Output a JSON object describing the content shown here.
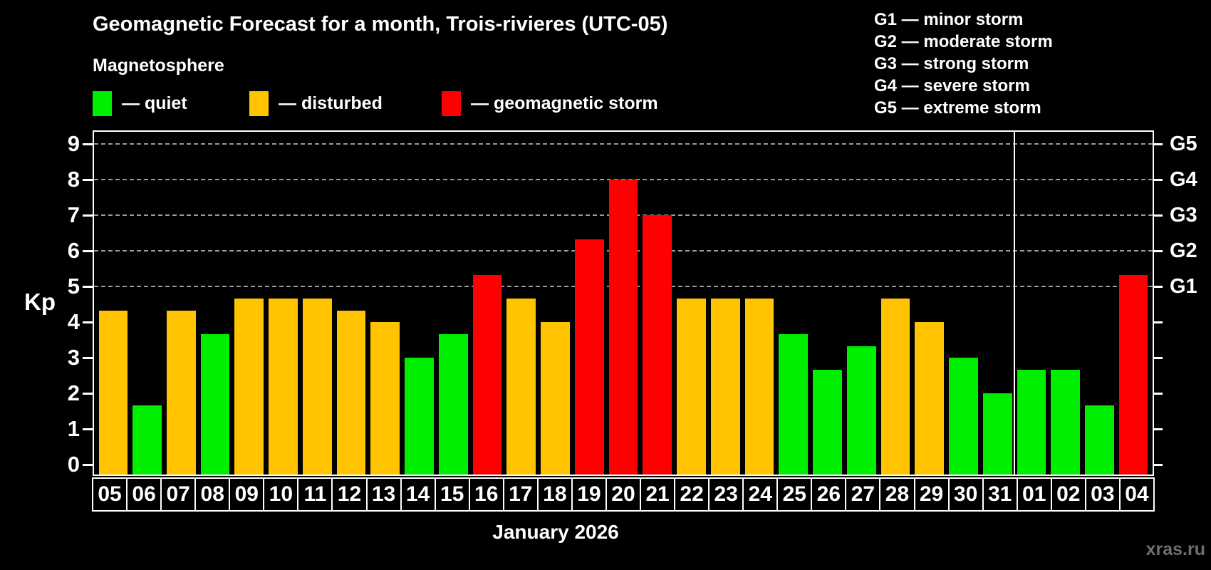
{
  "header": {
    "title": "Geomagnetic Forecast for a month, Trois-rivieres (UTC-05)",
    "subtitle": "Magnetosphere"
  },
  "legend": {
    "items": [
      {
        "key": "quiet",
        "label": "— quiet",
        "color": "#00ee00"
      },
      {
        "key": "disturbed",
        "label": "— disturbed",
        "color": "#ffc300"
      },
      {
        "key": "storm",
        "label": "— geomagnetic storm",
        "color": "#ff0000"
      }
    ]
  },
  "g_legend": {
    "items": [
      {
        "code": "G1",
        "label": "G1 — minor storm"
      },
      {
        "code": "G2",
        "label": "G2 — moderate storm"
      },
      {
        "code": "G3",
        "label": "G3 — strong storm"
      },
      {
        "code": "G4",
        "label": "G4 — severe storm"
      },
      {
        "code": "G5",
        "label": "G5 — extreme storm"
      }
    ]
  },
  "axes": {
    "left_label": "Kp",
    "left_ticks": [
      0,
      1,
      2,
      3,
      4,
      5,
      6,
      7,
      8,
      9
    ],
    "right_ticks": [
      {
        "kp": 5,
        "label": "G1"
      },
      {
        "kp": 6,
        "label": "G2"
      },
      {
        "kp": 7,
        "label": "G3"
      },
      {
        "kp": 8,
        "label": "G4"
      },
      {
        "kp": 9,
        "label": "G5"
      }
    ]
  },
  "footer": {
    "month_label": "January 2026",
    "watermark": "xras.ru"
  },
  "chart_data": {
    "type": "bar",
    "title": "Geomagnetic Forecast for a month, Trois-rivieres (UTC-05)",
    "subtitle": "Magnetosphere",
    "xlabel": "January 2026",
    "ylabel": "Kp",
    "ylim": [
      0,
      9
    ],
    "grid": {
      "kp_levels": [
        5,
        6,
        7,
        8,
        9
      ],
      "style": "dashed"
    },
    "legend_position": "top",
    "month_separator_before_index": 27,
    "days": [
      "05",
      "06",
      "07",
      "08",
      "09",
      "10",
      "11",
      "12",
      "13",
      "14",
      "15",
      "16",
      "17",
      "18",
      "19",
      "20",
      "21",
      "22",
      "23",
      "24",
      "25",
      "26",
      "27",
      "28",
      "29",
      "30",
      "31",
      "01",
      "02",
      "03",
      "04"
    ],
    "values": [
      4.33,
      1.67,
      4.33,
      3.67,
      4.67,
      4.67,
      4.67,
      4.33,
      4.0,
      3.0,
      3.67,
      5.33,
      4.67,
      4.0,
      6.33,
      8.0,
      7.0,
      4.67,
      4.67,
      4.67,
      3.67,
      2.67,
      3.33,
      4.67,
      4.0,
      3.0,
      2.0,
      2.67,
      2.67,
      1.67,
      5.33
    ],
    "status": [
      "disturbed",
      "quiet",
      "disturbed",
      "quiet",
      "disturbed",
      "disturbed",
      "disturbed",
      "disturbed",
      "disturbed",
      "quiet",
      "quiet",
      "storm",
      "disturbed",
      "disturbed",
      "storm",
      "storm",
      "storm",
      "disturbed",
      "disturbed",
      "disturbed",
      "quiet",
      "quiet",
      "quiet",
      "disturbed",
      "disturbed",
      "quiet",
      "quiet",
      "quiet",
      "quiet",
      "quiet",
      "storm"
    ],
    "colors": {
      "quiet": "#00ee00",
      "disturbed": "#ffc300",
      "storm": "#ff0000",
      "background": "#000000",
      "text": "#ffffff",
      "grid": "#9a9a9a",
      "watermark": "#6f6f6f"
    }
  }
}
